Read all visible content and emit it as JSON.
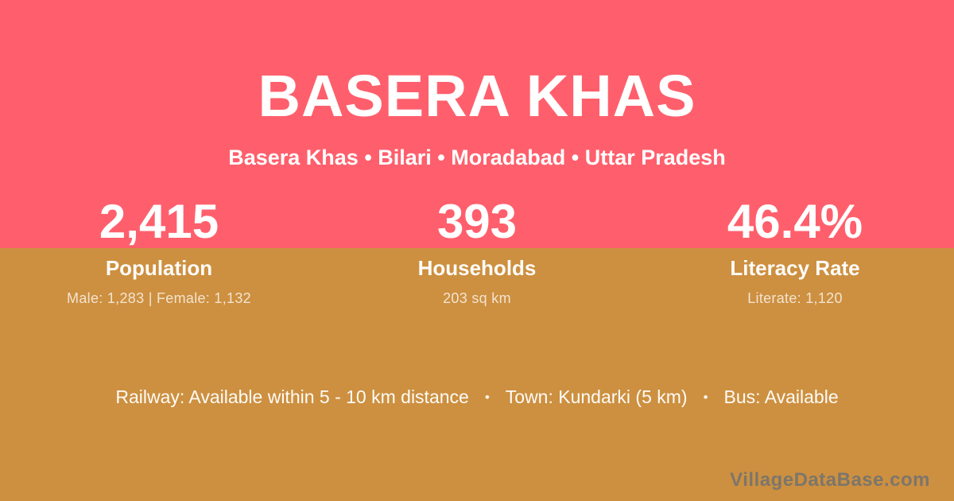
{
  "colors": {
    "top_bg": "#ff5f6c",
    "bottom_bg": "#cd9040",
    "text_white": "#ffffff",
    "watermark_gray": "#6f7273"
  },
  "header": {
    "title": "BASERA KHAS",
    "subtitle": "Basera Khas • Bilari • Moradabad • Uttar Pradesh"
  },
  "stats": [
    {
      "value": "2,415",
      "label": "Population",
      "detail": "Male: 1,283 | Female: 1,132"
    },
    {
      "value": "393",
      "label": "Households",
      "detail": "203 sq km"
    },
    {
      "value": "46.4%",
      "label": "Literacy Rate",
      "detail": "Literate: 1,120"
    }
  ],
  "footer": {
    "separator": "•",
    "segments": [
      "Railway: Available within 5 - 10 km distance",
      "Town: Kundarki (5 km)",
      "Bus: Available"
    ],
    "watermark": "VillageDataBase.com"
  }
}
